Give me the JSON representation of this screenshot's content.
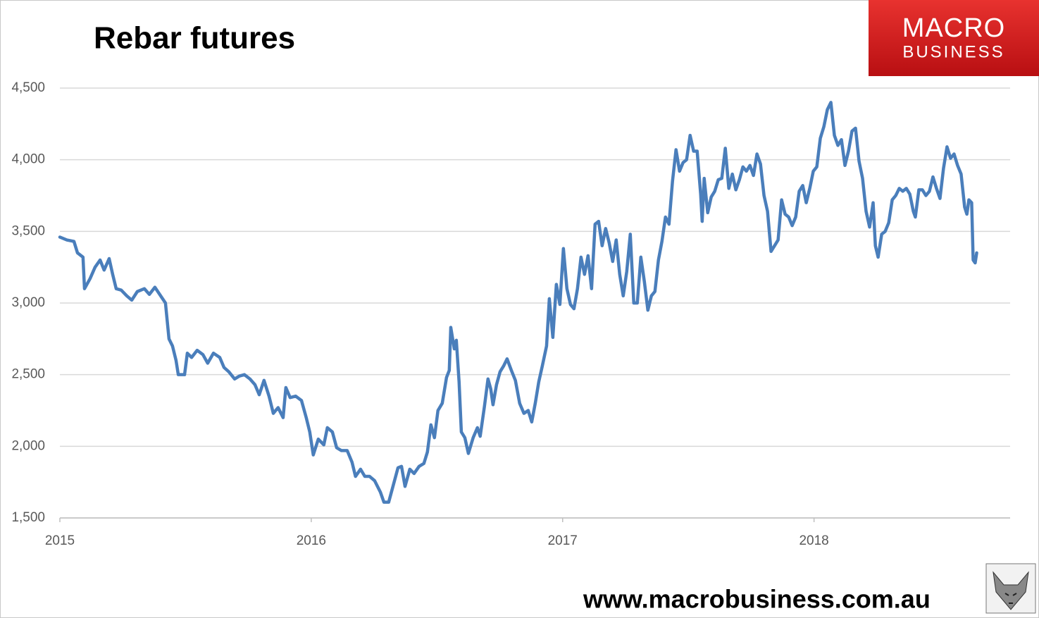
{
  "chart_data": {
    "type": "line",
    "title": "Rebar futures",
    "logo": [
      "MACRO",
      "BUSINESS"
    ],
    "source": "www.macrobusiness.com.au",
    "x": [
      2015.0,
      2015.028,
      2015.056,
      2015.07,
      2015.092,
      2015.098,
      2015.12,
      2015.14,
      2015.16,
      2015.176,
      2015.196,
      2015.21,
      2015.224,
      2015.244,
      2015.266,
      2015.286,
      2015.308,
      2015.336,
      2015.356,
      2015.378,
      2015.401,
      2015.42,
      2015.434,
      2015.448,
      2015.462,
      2015.471,
      2015.496,
      2015.507,
      2015.524,
      2015.546,
      2015.569,
      2015.588,
      2015.611,
      2015.636,
      2015.653,
      2015.672,
      2015.695,
      2015.714,
      2015.734,
      2015.756,
      2015.776,
      2015.793,
      2015.812,
      2015.832,
      2015.849,
      2015.868,
      2015.888,
      2015.899,
      2015.916,
      2015.938,
      2015.961,
      2015.98,
      2015.994,
      2016.008,
      2016.028,
      2016.05,
      2016.064,
      2016.084,
      2016.101,
      2016.12,
      2016.143,
      2016.162,
      2016.176,
      2016.196,
      2016.213,
      2016.232,
      2016.252,
      2016.275,
      2016.289,
      2016.308,
      2016.325,
      2016.345,
      2016.359,
      2016.373,
      2016.392,
      2016.409,
      2016.429,
      2016.448,
      2016.462,
      2016.476,
      2016.49,
      2016.504,
      2016.521,
      2016.538,
      2016.549,
      2016.555,
      2016.569,
      2016.577,
      2016.588,
      2016.597,
      2016.611,
      2016.625,
      2016.644,
      2016.661,
      2016.672,
      2016.689,
      2016.703,
      2016.714,
      2016.723,
      2016.737,
      2016.751,
      2016.765,
      2016.779,
      2016.796,
      2016.812,
      2016.829,
      2016.846,
      2016.863,
      2016.877,
      2016.891,
      2016.905,
      2016.919,
      2016.936,
      2016.947,
      2016.961,
      2016.975,
      2016.989,
      2017.003,
      2017.017,
      2017.031,
      2017.045,
      2017.059,
      2017.073,
      2017.087,
      2017.101,
      2017.115,
      2017.129,
      2017.143,
      2017.157,
      2017.171,
      2017.185,
      2017.199,
      2017.213,
      2017.227,
      2017.241,
      2017.255,
      2017.269,
      2017.283,
      2017.297,
      2017.311,
      2017.325,
      2017.339,
      2017.353,
      2017.367,
      2017.381,
      2017.395,
      2017.409,
      2017.423,
      2017.437,
      2017.451,
      2017.465,
      2017.479,
      2017.493,
      2017.507,
      2017.521,
      2017.535,
      2017.549,
      2017.555,
      2017.563,
      2017.577,
      2017.591,
      2017.605,
      2017.619,
      2017.633,
      2017.647,
      2017.661,
      2017.675,
      2017.689,
      2017.703,
      2017.717,
      2017.731,
      2017.745,
      2017.759,
      2017.773,
      2017.787,
      2017.801,
      2017.815,
      2017.829,
      2017.843,
      2017.857,
      2017.871,
      2017.885,
      2017.899,
      2017.913,
      2017.927,
      2017.941,
      2017.955,
      2017.969,
      2017.983,
      2017.997,
      2018.011,
      2018.025,
      2018.039,
      2018.053,
      2018.067,
      2018.081,
      2018.095,
      2018.109,
      2018.123,
      2018.137,
      2018.151,
      2018.165,
      2018.179,
      2018.193,
      2018.207,
      2018.221,
      2018.235,
      2018.244,
      2018.255,
      2018.269,
      2018.283,
      2018.297,
      2018.311,
      2018.325,
      2018.339,
      2018.353,
      2018.367,
      2018.381,
      2018.395,
      2018.403,
      2018.417,
      2018.431,
      2018.445,
      2018.459,
      2018.473,
      2018.487,
      2018.501,
      2018.515,
      2018.529,
      2018.543,
      2018.557,
      2018.571,
      2018.585,
      2018.599,
      2018.608,
      2018.616,
      2018.627,
      2018.633,
      2018.641,
      2018.647
    ],
    "series": [
      {
        "color": "#4a7ebb",
        "values": [
          3460,
          3440,
          3430,
          3350,
          3320,
          3100,
          3170,
          3250,
          3300,
          3230,
          3310,
          3200,
          3100,
          3090,
          3050,
          3020,
          3080,
          3100,
          3060,
          3110,
          3050,
          3000,
          2750,
          2700,
          2600,
          2500,
          2500,
          2650,
          2620,
          2670,
          2640,
          2580,
          2650,
          2620,
          2550,
          2520,
          2470,
          2490,
          2500,
          2470,
          2430,
          2360,
          2460,
          2350,
          2230,
          2270,
          2200,
          2410,
          2340,
          2350,
          2320,
          2200,
          2100,
          1940,
          2050,
          2010,
          2130,
          2100,
          1990,
          1970,
          1970,
          1890,
          1790,
          1840,
          1790,
          1790,
          1760,
          1680,
          1610,
          1610,
          1720,
          1850,
          1860,
          1720,
          1840,
          1810,
          1860,
          1880,
          1960,
          2150,
          2060,
          2250,
          2300,
          2480,
          2530,
          2830,
          2680,
          2740,
          2450,
          2100,
          2060,
          1950,
          2060,
          2130,
          2070,
          2280,
          2470,
          2400,
          2290,
          2430,
          2520,
          2560,
          2610,
          2530,
          2460,
          2300,
          2230,
          2250,
          2170,
          2300,
          2450,
          2560,
          2700,
          3030,
          2760,
          3130,
          2990,
          3380,
          3100,
          2990,
          2960,
          3100,
          3320,
          3200,
          3330,
          3100,
          3550,
          3570,
          3400,
          3520,
          3420,
          3290,
          3440,
          3200,
          3050,
          3220,
          3480,
          3000,
          3000,
          3320,
          3150,
          2950,
          3050,
          3080,
          3300,
          3430,
          3600,
          3550,
          3850,
          4070,
          3920,
          3980,
          4000,
          4170,
          4060,
          4060,
          3760,
          3570,
          3870,
          3630,
          3740,
          3780,
          3860,
          3870,
          4080,
          3800,
          3900,
          3790,
          3860,
          3950,
          3920,
          3960,
          3890,
          4040,
          3970,
          3750,
          3640,
          3360,
          3400,
          3440,
          3720,
          3620,
          3600,
          3540,
          3600,
          3780,
          3820,
          3700,
          3800,
          3920,
          3950,
          4150,
          4230,
          4350,
          4400,
          4170,
          4100,
          4140,
          3960,
          4060,
          4200,
          4220,
          3990,
          3870,
          3640,
          3530,
          3700,
          3400,
          3320,
          3480,
          3500,
          3560,
          3720,
          3750,
          3800,
          3780,
          3800,
          3760,
          3640,
          3600,
          3790,
          3790,
          3750,
          3780,
          3880,
          3800,
          3730,
          3940,
          4090,
          4010,
          4040,
          3960,
          3900,
          3670,
          3620,
          3720,
          3700,
          3300,
          3280,
          3350
        ]
      }
    ],
    "xlim": [
      2015,
      2018.78
    ],
    "xticks": [
      2015,
      2016,
      2017,
      2018
    ],
    "ylim": [
      1500,
      4500
    ],
    "yticks": [
      {
        "value": 1500,
        "label": "1,500"
      },
      {
        "value": 2000,
        "label": "2,000"
      },
      {
        "value": 2500,
        "label": "2,500"
      },
      {
        "value": 3000,
        "label": "3,000"
      },
      {
        "value": 3500,
        "label": "3,500"
      },
      {
        "value": 4000,
        "label": "4,000"
      },
      {
        "value": 4500,
        "label": "4,500"
      }
    ],
    "grid": true
  }
}
